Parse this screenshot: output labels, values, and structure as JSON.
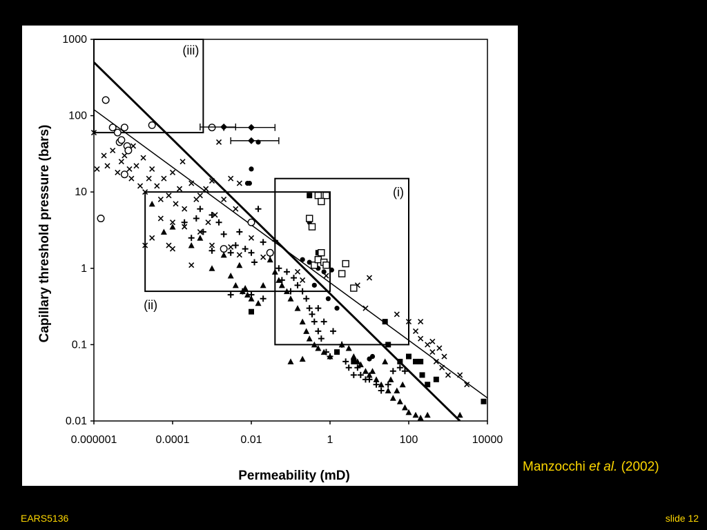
{
  "slide": {
    "footer_left": "EARS5136",
    "footer_right": "slide 12",
    "citation": {
      "author": "Manzocchi",
      "etal": "et al.",
      "year": "(2002)"
    },
    "colors": {
      "background": "#000000",
      "panel": "#ffffff",
      "footer_text": "#ffd800"
    }
  },
  "chart_data": {
    "type": "scatter",
    "xlabel": "Permeability (mD)",
    "ylabel": "Capillary threshold pressure (bars)",
    "x_scale": "log",
    "y_scale": "log",
    "xlim": [
      1e-06,
      10000
    ],
    "ylim": [
      0.01,
      1000
    ],
    "x_ticks": [
      {
        "value": 1e-06,
        "label": "0.000001"
      },
      {
        "value": 0.0001,
        "label": "0.0001"
      },
      {
        "value": 0.01,
        "label": "0.01"
      },
      {
        "value": 1,
        "label": "1"
      },
      {
        "value": 100,
        "label": "100"
      },
      {
        "value": 10000,
        "label": "10000"
      }
    ],
    "y_ticks": [
      {
        "value": 0.01,
        "label": "0.01"
      },
      {
        "value": 0.1,
        "label": "0.1"
      },
      {
        "value": 1,
        "label": "1"
      },
      {
        "value": 10,
        "label": "10"
      },
      {
        "value": 100,
        "label": "100"
      },
      {
        "value": 1000,
        "label": "1000"
      }
    ],
    "grid": false,
    "regions": [
      {
        "label": "(i)",
        "x": [
          0.04,
          100
        ],
        "y": [
          0.1,
          15
        ]
      },
      {
        "label": "(ii)",
        "x": [
          2e-05,
          1
        ],
        "y": [
          0.5,
          10
        ]
      },
      {
        "label": "(iii)",
        "x": [
          1e-06,
          0.0006
        ],
        "y": [
          60,
          1000
        ]
      }
    ],
    "fit_lines": [
      {
        "style": "thick",
        "x": [
          1e-06,
          2000
        ],
        "y": [
          500,
          0.01
        ]
      },
      {
        "style": "thin",
        "x": [
          1e-06,
          10000
        ],
        "y": [
          120,
          0.02
        ]
      }
    ],
    "series": [
      {
        "marker": "x",
        "points": [
          [
            1e-06,
            60
          ],
          [
            1.2e-06,
            20
          ],
          [
            1.8e-06,
            30
          ],
          [
            2.2e-06,
            22
          ],
          [
            3e-06,
            35
          ],
          [
            4e-06,
            18
          ],
          [
            5e-06,
            25
          ],
          [
            6e-06,
            30
          ],
          [
            8e-06,
            20
          ],
          [
            9e-06,
            15
          ],
          [
            1e-05,
            40
          ],
          [
            1.2e-05,
            22
          ],
          [
            1.5e-05,
            12
          ],
          [
            1.8e-05,
            28
          ],
          [
            2e-05,
            10
          ],
          [
            2.5e-05,
            15
          ],
          [
            3e-05,
            20
          ],
          [
            4e-05,
            12
          ],
          [
            5e-05,
            8
          ],
          [
            6e-05,
            15
          ],
          [
            8e-05,
            9
          ],
          [
            0.0001,
            18
          ],
          [
            0.00012,
            7
          ],
          [
            0.00015,
            11
          ],
          [
            0.00018,
            25
          ],
          [
            0.0002,
            6
          ],
          [
            0.0003,
            13
          ],
          [
            0.0004,
            8
          ],
          [
            0.0005,
            9
          ],
          [
            0.0007,
            11
          ],
          [
            0.001,
            14
          ],
          [
            0.0012,
            5
          ],
          [
            0.0015,
            45
          ],
          [
            0.002,
            8
          ],
          [
            0.003,
            15
          ],
          [
            0.004,
            6
          ],
          [
            0.005,
            13
          ],
          [
            0.0003,
            1.1
          ],
          [
            0.0005,
            3
          ],
          [
            0.0008,
            4
          ],
          [
            0.001,
            2
          ],
          [
            0.0001,
            1.8
          ],
          [
            5e-05,
            4.5
          ],
          [
            0.0001,
            4
          ],
          [
            0.0002,
            3.5
          ],
          [
            2e-05,
            2
          ],
          [
            3e-05,
            2.5
          ],
          [
            8e-05,
            2
          ],
          [
            0.01,
            2.5
          ],
          [
            0.02,
            1.4
          ],
          [
            0.003,
            1.9
          ],
          [
            0.005,
            1.5
          ],
          [
            0.2,
            0.7
          ],
          [
            0.15,
            0.9
          ],
          [
            0.8,
            0.8
          ],
          [
            5,
            0.6
          ],
          [
            10,
            0.75
          ],
          [
            8,
            0.3
          ],
          [
            50,
            0.25
          ],
          [
            100,
            0.2
          ],
          [
            200,
            0.12
          ],
          [
            300,
            0.1
          ],
          [
            400,
            0.08
          ],
          [
            500,
            0.06
          ],
          [
            700,
            0.05
          ],
          [
            1000,
            0.04
          ],
          [
            2000,
            0.04
          ],
          [
            3000,
            0.03
          ],
          [
            200,
            0.2
          ],
          [
            150,
            0.15
          ],
          [
            400,
            0.11
          ],
          [
            600,
            0.09
          ],
          [
            800,
            0.07
          ]
        ]
      },
      {
        "marker": "plus",
        "points": [
          [
            0.0002,
            4
          ],
          [
            0.0003,
            2.5
          ],
          [
            0.0004,
            4.5
          ],
          [
            0.0005,
            6
          ],
          [
            0.0006,
            3
          ],
          [
            0.001,
            5
          ],
          [
            0.0015,
            4
          ],
          [
            0.002,
            2.8
          ],
          [
            0.003,
            1.6
          ],
          [
            0.004,
            2
          ],
          [
            0.005,
            3
          ],
          [
            0.007,
            1.8
          ],
          [
            0.01,
            1.6
          ],
          [
            0.012,
            1.2
          ],
          [
            0.015,
            6
          ],
          [
            0.02,
            2.2
          ],
          [
            0.03,
            1.5
          ],
          [
            0.04,
            2.3
          ],
          [
            0.05,
            1
          ],
          [
            0.06,
            0.7
          ],
          [
            0.08,
            0.9
          ],
          [
            0.1,
            0.5
          ],
          [
            0.12,
            0.75
          ],
          [
            0.15,
            0.6
          ],
          [
            0.2,
            0.5
          ],
          [
            0.25,
            0.4
          ],
          [
            0.3,
            0.3
          ],
          [
            0.35,
            0.25
          ],
          [
            0.4,
            0.2
          ],
          [
            0.5,
            0.15
          ],
          [
            0.6,
            0.12
          ],
          [
            0.8,
            0.08
          ],
          [
            1,
            0.07
          ],
          [
            0.5,
            0.3
          ],
          [
            0.7,
            0.2
          ],
          [
            1.2,
            0.15
          ],
          [
            2,
            0.1
          ],
          [
            2.5,
            0.06
          ],
          [
            3,
            0.05
          ],
          [
            4,
            0.04
          ],
          [
            5,
            0.05
          ],
          [
            6,
            0.04
          ],
          [
            8,
            0.035
          ],
          [
            10,
            0.035
          ],
          [
            15,
            0.03
          ],
          [
            20,
            0.025
          ],
          [
            30,
            0.03
          ],
          [
            40,
            0.045
          ],
          [
            60,
            0.05
          ],
          [
            80,
            0.045
          ],
          [
            0.01,
            0.45
          ],
          [
            0.02,
            0.4
          ],
          [
            0.003,
            0.45
          ],
          [
            0.006,
            0.5
          ],
          [
            0.001,
            1.7
          ],
          [
            0.002,
            1.8
          ]
        ]
      },
      {
        "marker": "triangle",
        "points": [
          [
            3e-05,
            7
          ],
          [
            6e-05,
            3
          ],
          [
            0.0001,
            3.5
          ],
          [
            0.0003,
            2
          ],
          [
            0.0005,
            2.5
          ],
          [
            0.001,
            1
          ],
          [
            0.002,
            1.5
          ],
          [
            0.003,
            0.8
          ],
          [
            0.004,
            0.6
          ],
          [
            0.005,
            1.1
          ],
          [
            0.006,
            0.5
          ],
          [
            0.007,
            0.55
          ],
          [
            0.008,
            0.45
          ],
          [
            0.01,
            0.4
          ],
          [
            0.015,
            0.35
          ],
          [
            0.02,
            0.6
          ],
          [
            0.03,
            1.3
          ],
          [
            0.04,
            0.9
          ],
          [
            0.05,
            0.7
          ],
          [
            0.06,
            0.6
          ],
          [
            0.08,
            0.5
          ],
          [
            0.1,
            0.4
          ],
          [
            0.15,
            0.3
          ],
          [
            0.2,
            0.2
          ],
          [
            0.25,
            0.15
          ],
          [
            0.3,
            0.12
          ],
          [
            0.4,
            0.1
          ],
          [
            0.5,
            0.09
          ],
          [
            0.7,
            0.08
          ],
          [
            1,
            0.07
          ],
          [
            2,
            0.1
          ],
          [
            3,
            0.09
          ],
          [
            4,
            0.07
          ],
          [
            5,
            0.06
          ],
          [
            6,
            0.055
          ],
          [
            8,
            0.045
          ],
          [
            10,
            0.04
          ],
          [
            15,
            0.035
          ],
          [
            20,
            0.03
          ],
          [
            30,
            0.025
          ],
          [
            40,
            0.02
          ],
          [
            50,
            0.025
          ],
          [
            60,
            0.018
          ],
          [
            80,
            0.015
          ],
          [
            100,
            0.013
          ],
          [
            150,
            0.012
          ],
          [
            200,
            0.011
          ],
          [
            300,
            0.012
          ],
          [
            2000,
            0.012
          ],
          [
            0.1,
            0.06
          ],
          [
            0.2,
            0.065
          ],
          [
            12,
            0.045
          ],
          [
            25,
            0.06
          ],
          [
            35,
            0.035
          ],
          [
            70,
            0.03
          ]
        ]
      },
      {
        "marker": "circle-filled",
        "points": [
          [
            0.015,
            45
          ],
          [
            0.01,
            20
          ],
          [
            0.008,
            13
          ],
          [
            0.009,
            13
          ],
          [
            0.2,
            1.3
          ],
          [
            0.3,
            1.2
          ],
          [
            0.5,
            1
          ],
          [
            0.7,
            0.9
          ],
          [
            1.1,
            0.95
          ],
          [
            0.4,
            0.6
          ],
          [
            0.9,
            0.4
          ],
          [
            1.5,
            0.3
          ],
          [
            0.3,
            4
          ],
          [
            10,
            0.065
          ],
          [
            12,
            0.07
          ]
        ]
      },
      {
        "marker": "circle-open",
        "points": [
          [
            1.5e-06,
            4.5
          ],
          [
            2e-06,
            160
          ],
          [
            3e-06,
            70
          ],
          [
            4e-06,
            60
          ],
          [
            4.5e-06,
            45
          ],
          [
            5e-06,
            48
          ],
          [
            6e-06,
            70
          ],
          [
            7e-06,
            40
          ],
          [
            7.5e-06,
            35
          ],
          [
            6e-06,
            17
          ],
          [
            3e-05,
            75
          ],
          [
            0.001,
            70
          ],
          [
            0.002,
            1.8
          ],
          [
            0.01,
            4
          ],
          [
            0.03,
            1.6
          ]
        ]
      },
      {
        "marker": "square-filled",
        "points": [
          [
            0.01,
            0.27
          ],
          [
            0.3,
            9
          ],
          [
            0.5,
            1.6
          ],
          [
            1.5,
            0.08
          ],
          [
            25,
            0.2
          ],
          [
            30,
            0.1
          ],
          [
            60,
            0.06
          ],
          [
            100,
            0.07
          ],
          [
            150,
            0.06
          ],
          [
            200,
            0.06
          ],
          [
            220,
            0.04
          ],
          [
            300,
            0.03
          ],
          [
            500,
            0.035
          ],
          [
            8000,
            0.018
          ],
          [
            4,
            0.06
          ]
        ]
      },
      {
        "marker": "square-open",
        "points": [
          [
            0.4,
            1.1
          ],
          [
            0.5,
            1.3
          ],
          [
            0.6,
            1.6
          ],
          [
            0.7,
            1.2
          ],
          [
            0.8,
            1.1
          ],
          [
            0.3,
            4.5
          ],
          [
            0.35,
            3.5
          ],
          [
            0.5,
            9
          ],
          [
            0.8,
            9
          ],
          [
            0.6,
            7.5
          ],
          [
            2.5,
            1.15
          ],
          [
            2,
            0.85
          ],
          [
            4,
            0.55
          ]
        ]
      },
      {
        "marker": "diamond-errorbar",
        "points": [
          [
            0.01,
            70,
            0.002,
            0.04
          ],
          [
            0.01,
            47,
            0.003,
            0.05
          ],
          [
            0.002,
            71,
            0.0005,
            0.004
          ]
        ]
      }
    ]
  }
}
